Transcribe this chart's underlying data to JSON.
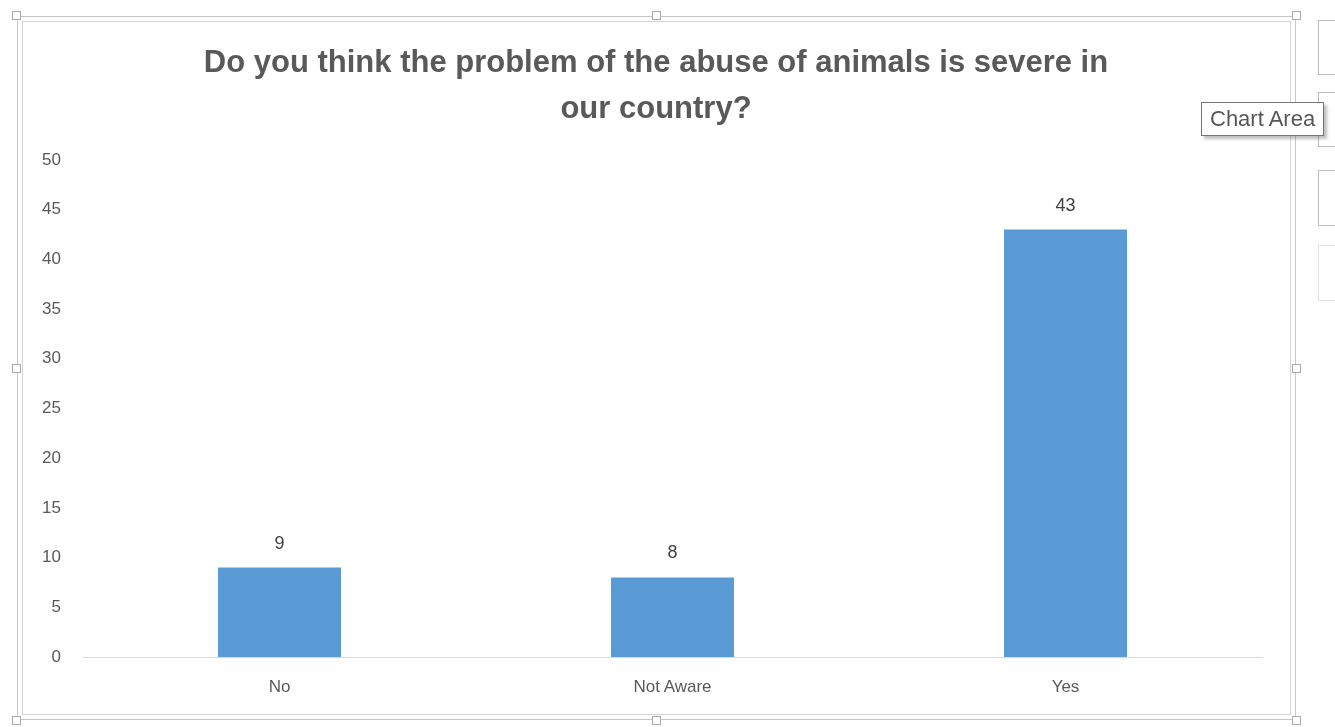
{
  "chart_data": {
    "type": "bar",
    "title": "Do you think the problem of the abuse of animals is severe in our country?",
    "categories": [
      "No",
      "Not Aware",
      "Yes"
    ],
    "values": [
      9,
      8,
      43
    ],
    "color": "#5b9bd5",
    "ylim": [
      0,
      50
    ],
    "yticks": [
      0,
      5,
      10,
      15,
      20,
      25,
      30,
      35,
      40,
      45,
      50
    ],
    "grid": false,
    "data_labels": true,
    "annotations": [
      "Chart Area"
    ]
  }
}
